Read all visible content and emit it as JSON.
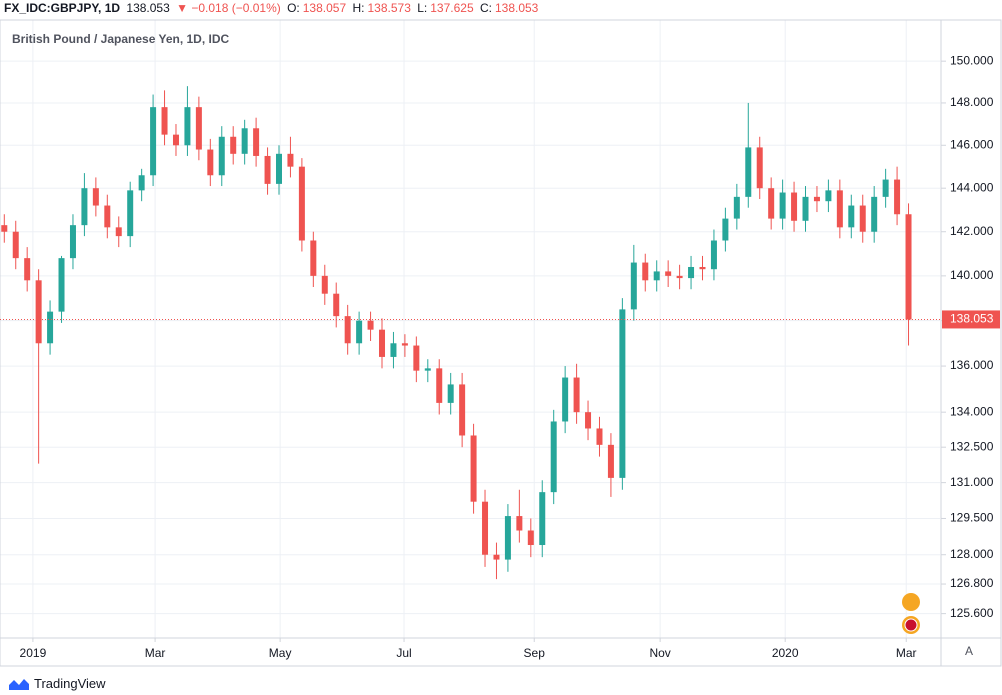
{
  "header": {
    "symbol": "FX_IDC:GBPJPY, 1D",
    "price": "138.053",
    "change": "▼ −0.018 (−0.01%)",
    "ohlc": [
      {
        "label": "O:",
        "value": "138.057"
      },
      {
        "label": "H:",
        "value": "138.573"
      },
      {
        "label": "L:",
        "value": "137.625"
      },
      {
        "label": "C:",
        "value": "138.053"
      }
    ]
  },
  "footer": {
    "brand": "TradingView",
    "scale_button": "A"
  },
  "chart_data": {
    "type": "candlestick",
    "title": "British Pound / Japanese Yen, 1D, IDC",
    "up_color": "#26a69a",
    "down_color": "#ef5350",
    "grid": true,
    "log_scale": true,
    "last_price": 138.053,
    "last_price_color": "#ef5350",
    "xlim": [
      -11.5,
      317
    ],
    "ylim": [
      124.62,
      151.9
    ],
    "xticks": [
      {
        "value": 0,
        "label": "2019"
      },
      {
        "value": 42.7,
        "label": "Mar"
      },
      {
        "value": 86.4,
        "label": "May"
      },
      {
        "value": 129.7,
        "label": "Jul"
      },
      {
        "value": 175.2,
        "label": "Sep"
      },
      {
        "value": 219.2,
        "label": "Nov"
      },
      {
        "value": 262.9,
        "label": "2020"
      },
      {
        "value": 305.2,
        "label": "Mar"
      }
    ],
    "yticks": [
      {
        "value": 150,
        "label": "150.000"
      },
      {
        "value": 148,
        "label": "148.000"
      },
      {
        "value": 146,
        "label": "146.000"
      },
      {
        "value": 144,
        "label": "144.000"
      },
      {
        "value": 142,
        "label": "142.000"
      },
      {
        "value": 140,
        "label": "140.000"
      },
      {
        "value": 138,
        "label": "138.000"
      },
      {
        "value": 136,
        "label": "136.000"
      },
      {
        "value": 134,
        "label": "134.000"
      },
      {
        "value": 132.5,
        "label": "132.500"
      },
      {
        "value": 131,
        "label": "131.000"
      },
      {
        "value": 129.5,
        "label": "129.500"
      },
      {
        "value": 128,
        "label": "128.000"
      },
      {
        "value": 126.8,
        "label": "126.800"
      },
      {
        "value": 125.6,
        "label": "125.600"
      }
    ],
    "x": [
      -10,
      -6,
      -2,
      2,
      6,
      10,
      14,
      18,
      22,
      26,
      30,
      34,
      38,
      42,
      46,
      50,
      54,
      58,
      62,
      66,
      70,
      74,
      78,
      82,
      86,
      90,
      94,
      98,
      102,
      106,
      110,
      114,
      118,
      122,
      126,
      130,
      134,
      138,
      142,
      146,
      150,
      154,
      158,
      162,
      166,
      170,
      174,
      178,
      182,
      186,
      190,
      194,
      198,
      202,
      206,
      210,
      214,
      218,
      222,
      226,
      230,
      234,
      238,
      242,
      246,
      250,
      254,
      258,
      262,
      266,
      270,
      274,
      278,
      282,
      286,
      290,
      294,
      298,
      302,
      306
    ],
    "open": [
      142.3,
      142.0,
      140.8,
      139.8,
      137.0,
      138.4,
      140.8,
      142.3,
      144.0,
      143.2,
      142.2,
      141.8,
      143.9,
      144.6,
      147.8,
      146.5,
      146.0,
      147.8,
      145.8,
      144.6,
      146.4,
      145.6,
      146.8,
      145.5,
      144.2,
      145.6,
      145.0,
      141.6,
      140.0,
      139.2,
      138.2,
      137.0,
      138.0,
      137.6,
      136.4,
      137.0,
      136.9,
      135.8,
      135.9,
      134.4,
      135.2,
      133.0,
      130.2,
      128.0,
      127.8,
      129.6,
      129.0,
      128.4,
      130.6,
      133.6,
      135.5,
      134.0,
      133.3,
      132.6,
      131.2,
      138.5,
      140.6,
      139.8,
      140.2,
      140.0,
      139.9,
      140.4,
      140.3,
      141.6,
      142.6,
      143.6,
      145.9,
      144.0,
      142.6,
      143.8,
      142.5,
      143.6,
      143.4,
      143.9,
      142.2,
      143.2,
      142.0,
      143.6,
      144.4,
      142.8
    ],
    "high": [
      142.8,
      142.5,
      141.3,
      140.3,
      138.9,
      140.9,
      142.8,
      144.7,
      144.5,
      143.7,
      142.7,
      144.3,
      144.9,
      148.4,
      148.6,
      147.0,
      148.8,
      148.3,
      146.3,
      146.9,
      146.9,
      147.2,
      147.3,
      145.9,
      146.0,
      146.4,
      145.4,
      142.0,
      140.5,
      139.7,
      138.7,
      138.4,
      138.4,
      138.1,
      137.5,
      137.4,
      137.3,
      136.3,
      136.3,
      135.7,
      135.7,
      133.5,
      130.7,
      128.5,
      130.1,
      130.7,
      129.5,
      131.1,
      134.1,
      136.0,
      136.1,
      134.5,
      133.8,
      133.1,
      139.0,
      141.4,
      141.0,
      140.7,
      140.7,
      140.5,
      140.9,
      140.9,
      142.1,
      143.1,
      144.2,
      148.0,
      146.4,
      144.5,
      144.4,
      144.3,
      144.1,
      144.1,
      144.4,
      144.4,
      143.7,
      143.7,
      144.1,
      144.9,
      145.0,
      143.3
    ],
    "low": [
      141.5,
      140.3,
      139.3,
      131.8,
      136.5,
      137.9,
      140.3,
      141.8,
      142.7,
      141.7,
      141.3,
      141.3,
      143.4,
      144.1,
      146.0,
      145.5,
      145.5,
      145.3,
      144.1,
      144.1,
      145.1,
      145.1,
      145.0,
      143.7,
      143.7,
      144.5,
      141.1,
      139.5,
      138.7,
      137.7,
      136.5,
      136.5,
      137.1,
      135.9,
      135.9,
      136.4,
      135.3,
      135.3,
      133.9,
      133.9,
      132.5,
      129.7,
      127.5,
      127.0,
      127.3,
      128.5,
      127.9,
      127.9,
      130.1,
      133.1,
      133.5,
      132.8,
      132.1,
      130.4,
      130.7,
      138.0,
      139.3,
      139.3,
      139.5,
      139.4,
      139.4,
      139.8,
      139.8,
      141.1,
      142.1,
      143.1,
      143.5,
      142.1,
      142.1,
      142.0,
      142.0,
      142.9,
      142.9,
      141.7,
      141.7,
      141.5,
      141.5,
      143.1,
      142.3,
      136.9
    ],
    "close": [
      142.0,
      140.8,
      139.8,
      137.0,
      138.4,
      140.8,
      142.3,
      144.0,
      143.2,
      142.2,
      141.8,
      143.9,
      144.6,
      147.8,
      146.5,
      146.0,
      147.8,
      145.8,
      144.6,
      146.4,
      145.6,
      146.8,
      145.5,
      144.2,
      145.6,
      145.0,
      141.6,
      140.0,
      139.2,
      138.2,
      137.0,
      138.0,
      137.6,
      136.4,
      137.0,
      136.9,
      135.8,
      135.9,
      134.4,
      135.2,
      133.0,
      130.2,
      128.0,
      127.8,
      129.6,
      129.0,
      128.4,
      130.6,
      133.6,
      135.5,
      134.0,
      133.3,
      132.6,
      131.2,
      138.5,
      140.6,
      139.8,
      140.2,
      140.0,
      139.9,
      140.4,
      140.3,
      141.6,
      142.6,
      143.6,
      145.9,
      144.0,
      142.6,
      143.8,
      142.5,
      143.6,
      143.4,
      143.9,
      142.2,
      143.2,
      142.0,
      143.6,
      144.4,
      142.8,
      138.05
    ]
  }
}
